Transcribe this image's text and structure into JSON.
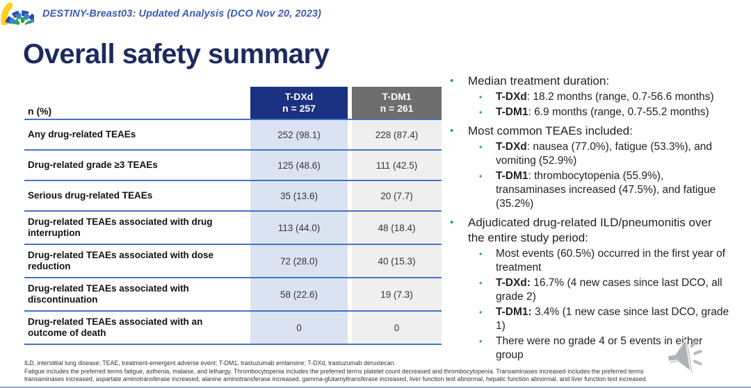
{
  "header": {
    "subtitle": "DESTINY-Breast03: Updated Analysis (DCO Nov 20, 2023)"
  },
  "title": "Overall safety summary",
  "table": {
    "corner_label": "n (%)",
    "columns": [
      {
        "label": "T-DXd",
        "sublabel": "n = 257"
      },
      {
        "label": "T-DM1",
        "sublabel": "n = 261"
      }
    ],
    "rows": [
      {
        "label": "Any drug-related TEAEs",
        "tdxd": "252 (98.1)",
        "tdm1": "228 (87.4)"
      },
      {
        "label": "Drug-related grade ≥3 TEAEs",
        "tdxd": "125 (48.6)",
        "tdm1": "111 (42.5)"
      },
      {
        "label": "Serious drug-related TEAEs",
        "tdxd": "35 (13.6)",
        "tdm1": "20 (7.7)"
      },
      {
        "label": "Drug-related TEAEs associated with drug interruption",
        "tdxd": "113 (44.0)",
        "tdm1": "48 (18.4)"
      },
      {
        "label": "Drug-related TEAEs associated with dose reduction",
        "tdxd": "72 (28.0)",
        "tdm1": "40 (15.3)"
      },
      {
        "label": "Drug-related TEAEs associated with discontinuation",
        "tdxd": "58 (22.6)",
        "tdm1": "19 (7.3)"
      },
      {
        "label": "Drug-related TEAEs associated with an outcome of death",
        "tdxd": "0",
        "tdm1": "0"
      }
    ]
  },
  "bullets": [
    {
      "level": 1,
      "segments": [
        {
          "bold": false,
          "text": "Median treatment duration:"
        }
      ]
    },
    {
      "level": 2,
      "segments": [
        {
          "bold": true,
          "text": "T-DXd"
        },
        {
          "bold": false,
          "text": ": 18.2 months (range, 0.7-56.6 months)"
        }
      ]
    },
    {
      "level": 2,
      "segments": [
        {
          "bold": true,
          "text": "T-DM1"
        },
        {
          "bold": false,
          "text": ": 6.9 months (range, 0.7-55.2 months)"
        }
      ]
    },
    {
      "level": 1,
      "segments": [
        {
          "bold": false,
          "text": "Most common TEAEs included:"
        }
      ]
    },
    {
      "level": 2,
      "segments": [
        {
          "bold": true,
          "text": "T-DXd"
        },
        {
          "bold": false,
          "text": ": nausea (77.0%), fatigue (53.3%), and vomiting (52.9%)"
        }
      ]
    },
    {
      "level": 2,
      "segments": [
        {
          "bold": true,
          "text": "T-DM1"
        },
        {
          "bold": false,
          "text": ": thrombocytopenia (55.9%), transaminases increased (47.5%), and fatigue (35.2%)"
        }
      ]
    },
    {
      "level": 1,
      "segments": [
        {
          "bold": false,
          "text": "Adjudicated drug-related ILD/pneumonitis over the entire study period:"
        }
      ]
    },
    {
      "level": 2,
      "segments": [
        {
          "bold": false,
          "text": "Most events (60.5%) occurred in the first year of treatment"
        }
      ]
    },
    {
      "level": 2,
      "segments": [
        {
          "bold": true,
          "text": "T-DXd:"
        },
        {
          "bold": false,
          "text": " 16.7% (4 new cases since last DCO, all grade 2)"
        }
      ]
    },
    {
      "level": 2,
      "segments": [
        {
          "bold": true,
          "text": "T-DM1:"
        },
        {
          "bold": false,
          "text": " 3.4% (1 new case since last DCO, grade 1)"
        }
      ]
    },
    {
      "level": 2,
      "segments": [
        {
          "bold": false,
          "text": "There were no grade 4 or 5 events in either group"
        }
      ]
    }
  ],
  "footnotes": [
    "ILD, interstitial lung disease; TEAE, treatment-emergent adverse event; T-DM1, trastuzumab emtansine; T-DXd, trastuzumab deruxtecan.",
    "Fatigue includes the preferred terms fatigue, asthenia, malaise, and lethargy.  Thrombocytopenia includes the preferred terms platelet count decreased and thrombocytopenia.  Transaminases increased includes the preferred terms",
    "transaminases increased, aspartate aminotransferase increased, alanine aminotransferase increased, gamma-glutamyltransferase increased, liver function test abnormal, hepatic function abnormal, and liver function test increased."
  ],
  "icons": {
    "logo": "conference-arc-logo",
    "speaker": "audio-speaker-icon"
  },
  "colors": {
    "tdxd_header": "#1b3181",
    "tdm1_header": "#6e6e6e",
    "tdxd_column_bg": "#dbe3f3",
    "tdm1_column_bg": "#efefef",
    "row_rule": "#4472c4",
    "title_navy": "#1b2b5e",
    "subtitle_blue": "#3b5fae",
    "bullet_green": "#1d9e5f"
  }
}
